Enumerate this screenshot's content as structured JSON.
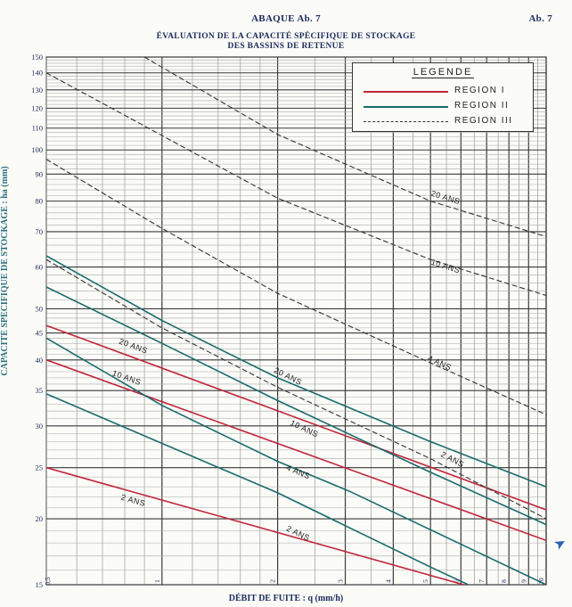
{
  "header": {
    "center": "ABAQUE Ab. 7",
    "right": "Ab. 7"
  },
  "title": {
    "line1": "ÉVALUATION DE LA CAPACITÉ SPÉCIFIQUE DE STOCKAGE",
    "line2": "DES BASSINS DE RETENUE"
  },
  "legend": {
    "title": "LEGENDE",
    "items": [
      {
        "label": "REGION  I",
        "color": "#c0253a",
        "style": "solid"
      },
      {
        "label": "REGION  II",
        "color": "#1a6b6b",
        "style": "solid"
      },
      {
        "label": "REGION  III",
        "color": "#333333",
        "style": "dashed"
      }
    ]
  },
  "chart_data": {
    "type": "line",
    "title": "ÉVALUATION DE LA CAPACITÉ SPÉCIFIQUE DE STOCKAGE DES BASSINS DE RETENUE",
    "xlabel": "DÉBIT DE FUITE : q (mm/h)",
    "ylabel": "CAPACITÉ SPÉCIFIQUE DE STOCKAGE : ha (mm)",
    "x_scale": "log",
    "y_scale": "log",
    "xlim": [
      0.5,
      10
    ],
    "ylim": [
      15,
      150
    ],
    "x_tick_labels": [
      {
        "value": 0.5,
        "label": "0,5"
      },
      {
        "value": 1,
        "label": "1"
      },
      {
        "value": 2,
        "label": "2"
      },
      {
        "value": 3,
        "label": "3"
      },
      {
        "value": 4,
        "label": "4"
      },
      {
        "value": 5,
        "label": "5"
      },
      {
        "value": 6,
        "label": "6"
      },
      {
        "value": 7,
        "label": "7"
      },
      {
        "value": 8,
        "label": "8"
      },
      {
        "value": 9,
        "label": "9"
      },
      {
        "value": 10,
        "label": "10"
      }
    ],
    "y_tick_labels": [
      {
        "value": 15,
        "label": "15"
      },
      {
        "value": 20,
        "label": "20"
      },
      {
        "value": 25,
        "label": "25"
      },
      {
        "value": 30,
        "label": "30"
      },
      {
        "value": 35,
        "label": "35"
      },
      {
        "value": 40,
        "label": "40"
      },
      {
        "value": 45,
        "label": "45"
      },
      {
        "value": 50,
        "label": "50"
      },
      {
        "value": 60,
        "label": "60"
      },
      {
        "value": 70,
        "label": "70"
      },
      {
        "value": 80,
        "label": "80"
      },
      {
        "value": 90,
        "label": "90"
      },
      {
        "value": 100,
        "label": "100"
      },
      {
        "value": 110,
        "label": "110"
      },
      {
        "value": 120,
        "label": "120"
      },
      {
        "value": 130,
        "label": "130"
      },
      {
        "value": 140,
        "label": "140"
      },
      {
        "value": 150,
        "label": "150"
      }
    ],
    "grid": true,
    "legend_position": "top-right",
    "series": [
      {
        "name": "REGION I",
        "region": "I",
        "period": "2 ANS",
        "label": "2 ANS",
        "color": "#c0253a",
        "dash": false,
        "x": [
          0.5,
          6.1
        ],
        "y": [
          25,
          15
        ],
        "label_at": [
          0.78,
          21.5
        ]
      },
      {
        "name": "REGION I",
        "region": "I",
        "period": "10 ANS",
        "label": "10 ANS",
        "color": "#c0253a",
        "dash": false,
        "x": [
          0.5,
          10
        ],
        "y": [
          40,
          18.2
        ],
        "label_at": [
          0.74,
          37
        ]
      },
      {
        "name": "REGION I",
        "region": "I",
        "period": "20 ANS",
        "label": "20 ANS",
        "color": "#c0253a",
        "dash": false,
        "x": [
          0.5,
          10
        ],
        "y": [
          46.5,
          20.8
        ],
        "label_at": [
          0.77,
          42.5
        ]
      },
      {
        "name": "REGION II",
        "region": "II",
        "period": "2 ANS",
        "label": "2 ANS",
        "color": "#1a6b6b",
        "dash": false,
        "x": [
          0.5,
          2,
          5,
          10
        ],
        "y": [
          34.5,
          22.4,
          16.2,
          12.8
        ],
        "label_at": [
          2.1,
          18.8
        ]
      },
      {
        "name": "REGION II",
        "region": "II",
        "period": "4 ANS",
        "label": "4 ANS",
        "color": "#1a6b6b",
        "dash": false,
        "x": [
          0.5,
          1,
          2,
          3.1,
          10
        ],
        "y": [
          44,
          32.8,
          25.7,
          22.5,
          15
        ],
        "label_at": [
          2.1,
          24.5
        ]
      },
      {
        "name": "REGION II",
        "region": "II",
        "period": "10 ANS",
        "label": "10 ANS",
        "color": "#1a6b6b",
        "dash": false,
        "x": [
          0.5,
          1,
          2,
          5,
          10
        ],
        "y": [
          55,
          43,
          33.5,
          24.5,
          19.5
        ],
        "label_at": [
          2.15,
          29.8
        ]
      },
      {
        "name": "REGION II",
        "region": "II",
        "period": "20 ANS",
        "label": "20 ANS",
        "color": "#1a6b6b",
        "dash": false,
        "x": [
          0.5,
          1,
          2,
          5,
          10
        ],
        "y": [
          63,
          47.5,
          37,
          28,
          23
        ],
        "label_at": [
          1.95,
          37.5
        ]
      },
      {
        "name": "REGION III",
        "region": "III",
        "period": "2 ANS",
        "label": "2 ANS",
        "color": "#333333",
        "dash": true,
        "x": [
          0.5,
          1,
          2,
          5,
          10
        ],
        "y": [
          62,
          46,
          35.5,
          26,
          20
        ],
        "label_at": [
          5.3,
          26
        ]
      },
      {
        "name": "REGION III",
        "region": "III",
        "period": "4 ANS",
        "label": "4 ANS",
        "color": "#333333",
        "dash": true,
        "x": [
          0.5,
          1,
          2,
          5,
          10
        ],
        "y": [
          96,
          71,
          53.5,
          39.5,
          31.5
        ],
        "label_at": [
          4.9,
          39.5
        ]
      },
      {
        "name": "REGION III",
        "region": "III",
        "period": "10 ANS",
        "label": "10 ANS",
        "color": "#333333",
        "dash": true,
        "x": [
          0.5,
          2,
          5,
          10
        ],
        "y": [
          140,
          81,
          62,
          53
        ],
        "label_at": [
          5.0,
          60
        ]
      },
      {
        "name": "REGION III",
        "region": "III",
        "period": "20 ANS",
        "label": "20 ANS",
        "color": "#333333",
        "dash": true,
        "x": [
          0.9,
          2,
          5,
          10
        ],
        "y": [
          150,
          107,
          80,
          68.5
        ],
        "label_at": [
          5.0,
          81
        ]
      }
    ]
  }
}
